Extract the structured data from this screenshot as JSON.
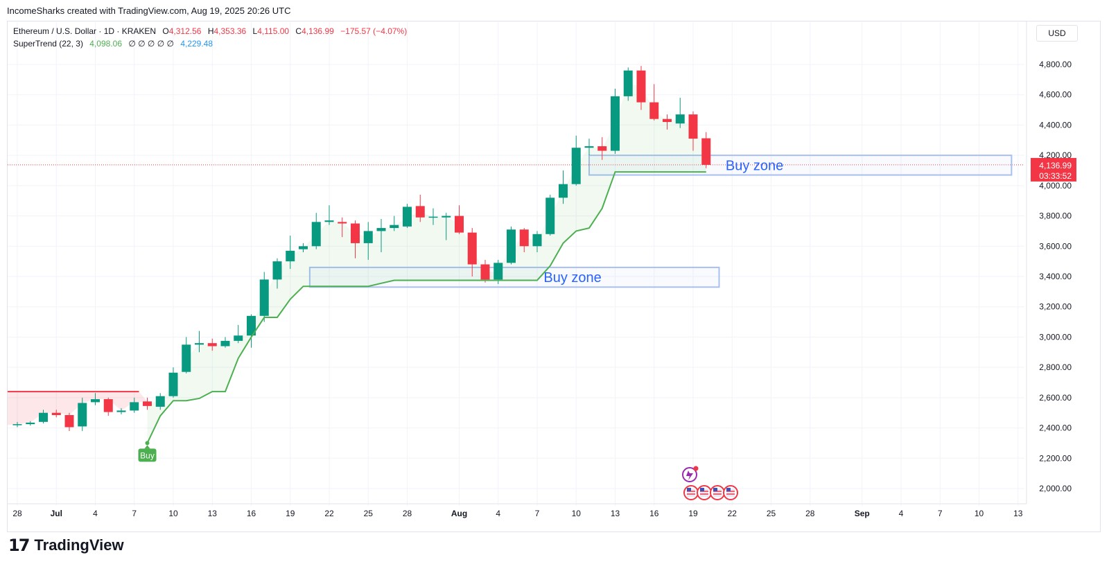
{
  "header": {
    "attribution": "IncomeSharks created with TradingView.com, Aug 19, 2025 20:26 UTC"
  },
  "legend": {
    "symbol": "Ethereum / U.S. Dollar · 1D · KRAKEN",
    "o_label": "O",
    "o_value": "4,312.56",
    "h_label": "H",
    "h_value": "4,353.36",
    "l_label": "L",
    "l_value": "4,115.00",
    "c_label": "C",
    "c_value": "4,136.99",
    "change": "−175.57 (−4.07%)",
    "indicator": "SuperTrend (22, 3)",
    "ind_up": "4,098.06",
    "ind_empty": "∅  ∅  ∅  ∅  ∅",
    "ind_down": "4,229.48"
  },
  "currency_button": "USD",
  "price_tag": {
    "price": "4,136.99",
    "countdown": "03:33:52"
  },
  "footer": {
    "brand": "TradingView",
    "mark": "17"
  },
  "colors": {
    "up": "#089981",
    "down": "#f23645",
    "supertrend": "#4caf50",
    "zone_border": "#a9bff2",
    "zone_text": "#2962ff",
    "buy_label": "#4caf50"
  },
  "chart_data": {
    "type": "candlestick",
    "title": "Ethereum / U.S. Dollar · 1D · KRAKEN",
    "ylim": [
      1900,
      4950
    ],
    "y_ticks": [
      {
        "value": 4800,
        "label": "4,800.00"
      },
      {
        "value": 4600,
        "label": "4,600.00"
      },
      {
        "value": 4400,
        "label": "4,400.00"
      },
      {
        "value": 4200,
        "label": "4,200.00"
      },
      {
        "value": 4000,
        "label": "4,000.00"
      },
      {
        "value": 3800,
        "label": "3,800.00"
      },
      {
        "value": 3600,
        "label": "3,600.00"
      },
      {
        "value": 3400,
        "label": "3,400.00"
      },
      {
        "value": 3200,
        "label": "3,200.00"
      },
      {
        "value": 3000,
        "label": "3,000.00"
      },
      {
        "value": 2800,
        "label": "2,800.00"
      },
      {
        "value": 2600,
        "label": "2,600.00"
      },
      {
        "value": 2400,
        "label": "2,400.00"
      },
      {
        "value": 2200,
        "label": "2,200.00"
      },
      {
        "value": 2000,
        "label": "2,000.00"
      }
    ],
    "x_ticks": [
      {
        "day": 0,
        "label": "28"
      },
      {
        "day": 3,
        "label": "Jul"
      },
      {
        "day": 6,
        "label": "4"
      },
      {
        "day": 9,
        "label": "7"
      },
      {
        "day": 12,
        "label": "10"
      },
      {
        "day": 15,
        "label": "13"
      },
      {
        "day": 18,
        "label": "16"
      },
      {
        "day": 21,
        "label": "19"
      },
      {
        "day": 24,
        "label": "22"
      },
      {
        "day": 27,
        "label": "25"
      },
      {
        "day": 30,
        "label": "28"
      },
      {
        "day": 34,
        "label": "Aug"
      },
      {
        "day": 37,
        "label": "4"
      },
      {
        "day": 40,
        "label": "7"
      },
      {
        "day": 43,
        "label": "10"
      },
      {
        "day": 46,
        "label": "13"
      },
      {
        "day": 49,
        "label": "16"
      },
      {
        "day": 52,
        "label": "19"
      },
      {
        "day": 55,
        "label": "22"
      },
      {
        "day": 58,
        "label": "25"
      },
      {
        "day": 61,
        "label": "28"
      },
      {
        "day": 65,
        "label": "Sep"
      },
      {
        "day": 68,
        "label": "4"
      },
      {
        "day": 71,
        "label": "7"
      },
      {
        "day": 74,
        "label": "10"
      },
      {
        "day": 77,
        "label": "13"
      }
    ],
    "candles": [
      {
        "o": 2420,
        "h": 2440,
        "l": 2405,
        "c": 2425
      },
      {
        "o": 2425,
        "h": 2445,
        "l": 2415,
        "c": 2435
      },
      {
        "o": 2440,
        "h": 2520,
        "l": 2430,
        "c": 2500
      },
      {
        "o": 2500,
        "h": 2520,
        "l": 2470,
        "c": 2485
      },
      {
        "o": 2485,
        "h": 2500,
        "l": 2380,
        "c": 2405
      },
      {
        "o": 2410,
        "h": 2600,
        "l": 2380,
        "c": 2565
      },
      {
        "o": 2570,
        "h": 2630,
        "l": 2550,
        "c": 2590
      },
      {
        "o": 2590,
        "h": 2600,
        "l": 2480,
        "c": 2505
      },
      {
        "o": 2505,
        "h": 2530,
        "l": 2490,
        "c": 2515
      },
      {
        "o": 2515,
        "h": 2600,
        "l": 2500,
        "c": 2570
      },
      {
        "o": 2575,
        "h": 2600,
        "l": 2520,
        "c": 2545
      },
      {
        "o": 2540,
        "h": 2630,
        "l": 2520,
        "c": 2610
      },
      {
        "o": 2610,
        "h": 2800,
        "l": 2600,
        "c": 2765
      },
      {
        "o": 2770,
        "h": 3000,
        "l": 2760,
        "c": 2950
      },
      {
        "o": 2950,
        "h": 3040,
        "l": 2900,
        "c": 2960
      },
      {
        "o": 2960,
        "h": 2990,
        "l": 2910,
        "c": 2940
      },
      {
        "o": 2940,
        "h": 3000,
        "l": 2930,
        "c": 2975
      },
      {
        "o": 2975,
        "h": 3080,
        "l": 2960,
        "c": 3010
      },
      {
        "o": 3010,
        "h": 3150,
        "l": 2930,
        "c": 3140
      },
      {
        "o": 3140,
        "h": 3430,
        "l": 3100,
        "c": 3380
      },
      {
        "o": 3380,
        "h": 3520,
        "l": 3320,
        "c": 3500
      },
      {
        "o": 3500,
        "h": 3670,
        "l": 3450,
        "c": 3570
      },
      {
        "o": 3580,
        "h": 3620,
        "l": 3560,
        "c": 3600
      },
      {
        "o": 3600,
        "h": 3820,
        "l": 3580,
        "c": 3760
      },
      {
        "o": 3760,
        "h": 3870,
        "l": 3740,
        "c": 3770
      },
      {
        "o": 3760,
        "h": 3790,
        "l": 3660,
        "c": 3750
      },
      {
        "o": 3750,
        "h": 3770,
        "l": 3520,
        "c": 3620
      },
      {
        "o": 3620,
        "h": 3760,
        "l": 3510,
        "c": 3700
      },
      {
        "o": 3700,
        "h": 3780,
        "l": 3560,
        "c": 3720
      },
      {
        "o": 3720,
        "h": 3800,
        "l": 3700,
        "c": 3740
      },
      {
        "o": 3730,
        "h": 3880,
        "l": 3720,
        "c": 3860
      },
      {
        "o": 3865,
        "h": 3940,
        "l": 3760,
        "c": 3790
      },
      {
        "o": 3790,
        "h": 3850,
        "l": 3740,
        "c": 3795
      },
      {
        "o": 3790,
        "h": 3820,
        "l": 3640,
        "c": 3800
      },
      {
        "o": 3800,
        "h": 3870,
        "l": 3680,
        "c": 3690
      },
      {
        "o": 3690,
        "h": 3720,
        "l": 3400,
        "c": 3480
      },
      {
        "o": 3480,
        "h": 3510,
        "l": 3360,
        "c": 3380
      },
      {
        "o": 3380,
        "h": 3510,
        "l": 3350,
        "c": 3490
      },
      {
        "o": 3490,
        "h": 3730,
        "l": 3480,
        "c": 3710
      },
      {
        "o": 3710,
        "h": 3720,
        "l": 3560,
        "c": 3600
      },
      {
        "o": 3600,
        "h": 3700,
        "l": 3560,
        "c": 3680
      },
      {
        "o": 3680,
        "h": 3940,
        "l": 3670,
        "c": 3920
      },
      {
        "o": 3920,
        "h": 4100,
        "l": 3880,
        "c": 4010
      },
      {
        "o": 4010,
        "h": 4330,
        "l": 4000,
        "c": 4250
      },
      {
        "o": 4250,
        "h": 4310,
        "l": 4200,
        "c": 4260
      },
      {
        "o": 4260,
        "h": 4320,
        "l": 4170,
        "c": 4230
      },
      {
        "o": 4230,
        "h": 4640,
        "l": 4210,
        "c": 4590
      },
      {
        "o": 4590,
        "h": 4780,
        "l": 4560,
        "c": 4760
      },
      {
        "o": 4760,
        "h": 4790,
        "l": 4500,
        "c": 4550
      },
      {
        "o": 4550,
        "h": 4670,
        "l": 4430,
        "c": 4440
      },
      {
        "o": 4440,
        "h": 4470,
        "l": 4370,
        "c": 4420
      },
      {
        "o": 4410,
        "h": 4580,
        "l": 4380,
        "c": 4470
      },
      {
        "o": 4470,
        "h": 4490,
        "l": 4230,
        "c": 4310
      },
      {
        "o": 4312.56,
        "h": 4353.36,
        "l": 4115,
        "c": 4136.99
      }
    ],
    "supertrend": [
      {
        "day": 10,
        "v": 2300
      },
      {
        "day": 11,
        "v": 2480
      },
      {
        "day": 12,
        "v": 2580
      },
      {
        "day": 13,
        "v": 2580
      },
      {
        "day": 14,
        "v": 2595
      },
      {
        "day": 15,
        "v": 2640
      },
      {
        "day": 16,
        "v": 2640
      },
      {
        "day": 17,
        "v": 2860
      },
      {
        "day": 18,
        "v": 3000
      },
      {
        "day": 19,
        "v": 3130
      },
      {
        "day": 20,
        "v": 3130
      },
      {
        "day": 21,
        "v": 3250
      },
      {
        "day": 22,
        "v": 3335
      },
      {
        "day": 23,
        "v": 3335
      },
      {
        "day": 24,
        "v": 3335
      },
      {
        "day": 25,
        "v": 3335
      },
      {
        "day": 26,
        "v": 3335
      },
      {
        "day": 27,
        "v": 3335
      },
      {
        "day": 28,
        "v": 3355
      },
      {
        "day": 29,
        "v": 3375
      },
      {
        "day": 30,
        "v": 3375
      },
      {
        "day": 31,
        "v": 3375
      },
      {
        "day": 32,
        "v": 3375
      },
      {
        "day": 33,
        "v": 3375
      },
      {
        "day": 34,
        "v": 3375
      },
      {
        "day": 35,
        "v": 3375
      },
      {
        "day": 36,
        "v": 3375
      },
      {
        "day": 37,
        "v": 3375
      },
      {
        "day": 38,
        "v": 3375
      },
      {
        "day": 39,
        "v": 3375
      },
      {
        "day": 40,
        "v": 3375
      },
      {
        "day": 41,
        "v": 3470
      },
      {
        "day": 42,
        "v": 3620
      },
      {
        "day": 43,
        "v": 3700
      },
      {
        "day": 44,
        "v": 3720
      },
      {
        "day": 45,
        "v": 3850
      },
      {
        "day": 46,
        "v": 4090
      },
      {
        "day": 47,
        "v": 4090
      },
      {
        "day": 48,
        "v": 4090
      },
      {
        "day": 49,
        "v": 4090
      },
      {
        "day": 50,
        "v": 4090
      },
      {
        "day": 51,
        "v": 4090
      },
      {
        "day": 52,
        "v": 4090
      },
      {
        "day": 53,
        "v": 4090
      }
    ],
    "resistance": {
      "from_day": -1,
      "to_day": 10,
      "value": 2640
    },
    "buy_signal": {
      "day": 10,
      "value": 2300,
      "label": "Buy"
    },
    "zones": [
      {
        "from_day": 22.5,
        "to_day": 54,
        "low": 3330,
        "high": 3460,
        "label": "Buy zone"
      },
      {
        "from_day": 44,
        "to_day": 76.5,
        "low": 4070,
        "high": 4200,
        "label": "Buy zone"
      }
    ],
    "last_price": 4136.99
  }
}
